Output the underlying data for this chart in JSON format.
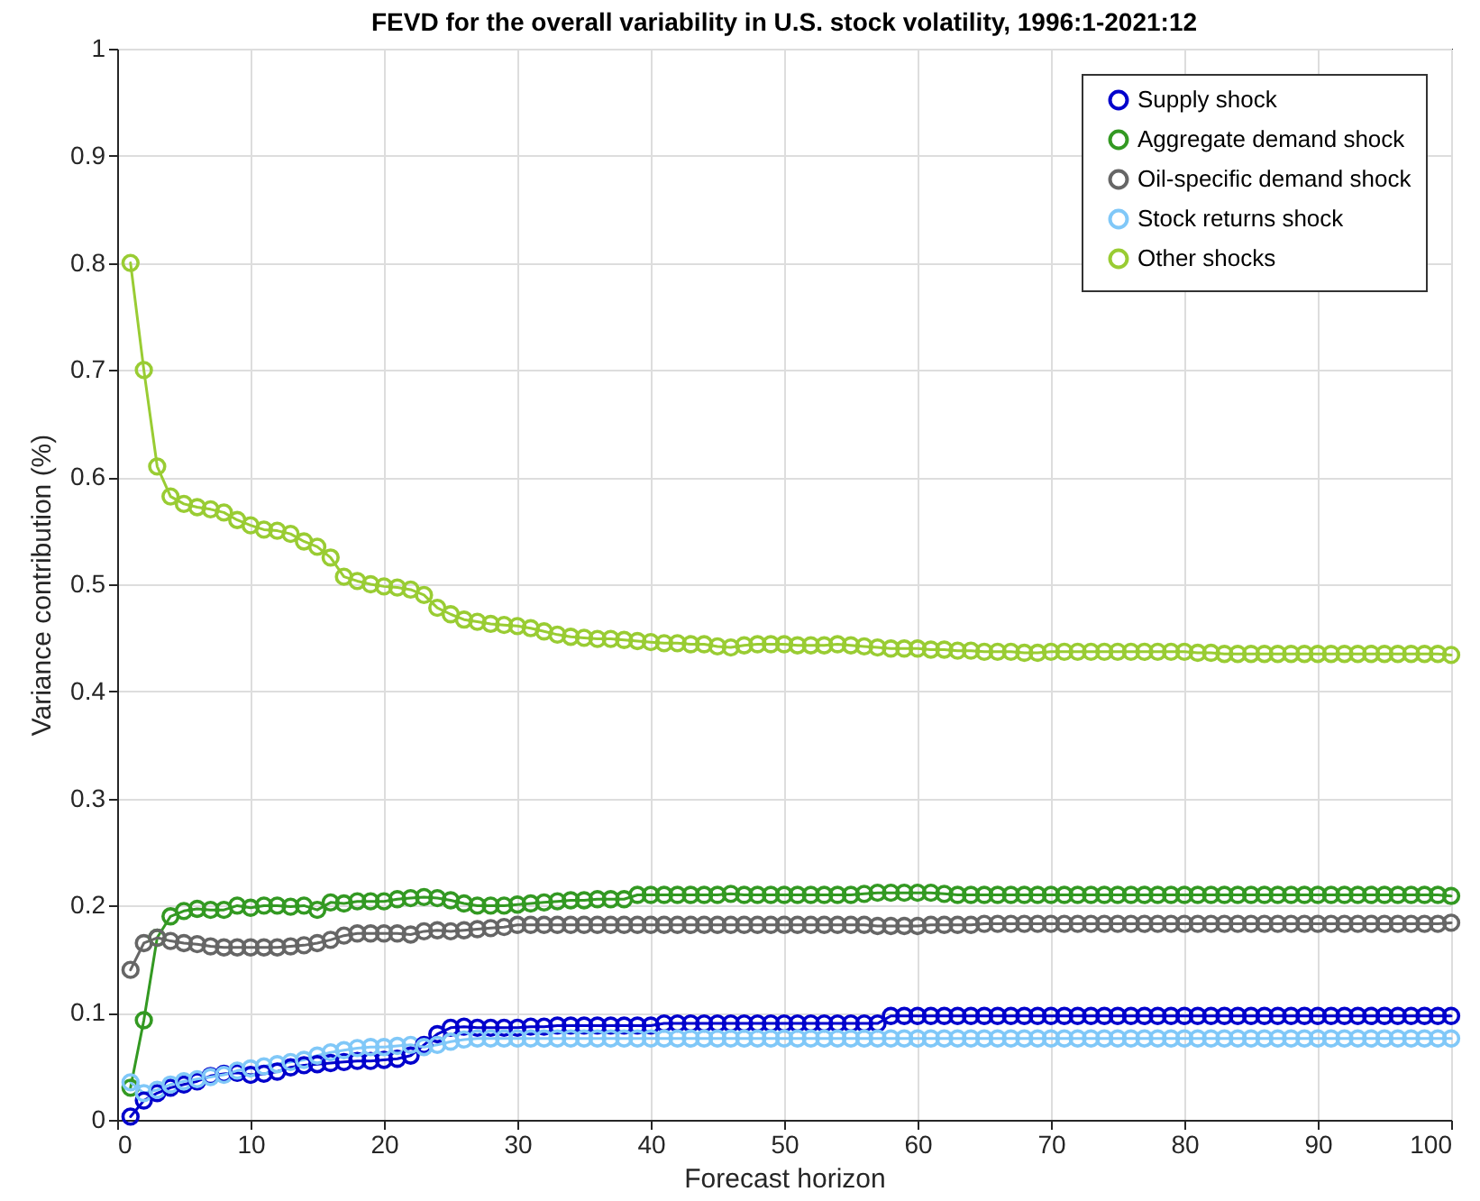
{
  "chart_data": {
    "type": "line",
    "title": "FEVD for the overall variability in U.S. stock volatility, 1996:1-2021:12",
    "xlabel": "Forecast horizon",
    "ylabel": "Variance contribution (%)",
    "x": [
      1,
      2,
      3,
      4,
      5,
      6,
      7,
      8,
      9,
      10,
      11,
      12,
      13,
      14,
      15,
      16,
      17,
      18,
      19,
      20,
      21,
      22,
      23,
      24,
      25,
      26,
      27,
      28,
      29,
      30,
      31,
      32,
      33,
      34,
      35,
      36,
      37,
      38,
      39,
      40,
      41,
      42,
      43,
      44,
      45,
      46,
      47,
      48,
      49,
      50,
      51,
      52,
      53,
      54,
      55,
      56,
      57,
      58,
      59,
      60,
      61,
      62,
      63,
      64,
      65,
      66,
      67,
      68,
      69,
      70,
      71,
      72,
      73,
      74,
      75,
      76,
      77,
      78,
      79,
      80,
      81,
      82,
      83,
      84,
      85,
      86,
      87,
      88,
      89,
      90,
      91,
      92,
      93,
      94,
      95,
      96,
      97,
      98,
      99,
      100
    ],
    "series": [
      {
        "name": "Supply shock",
        "color": "#0000cc",
        "values": [
          0.003,
          0.018,
          0.025,
          0.03,
          0.033,
          0.036,
          0.041,
          0.043,
          0.044,
          0.042,
          0.043,
          0.045,
          0.049,
          0.051,
          0.052,
          0.053,
          0.054,
          0.055,
          0.055,
          0.056,
          0.057,
          0.06,
          0.07,
          0.08,
          0.086,
          0.087,
          0.086,
          0.086,
          0.086,
          0.086,
          0.087,
          0.087,
          0.088,
          0.088,
          0.088,
          0.088,
          0.088,
          0.088,
          0.088,
          0.088,
          0.09,
          0.09,
          0.09,
          0.09,
          0.09,
          0.09,
          0.09,
          0.09,
          0.09,
          0.09,
          0.09,
          0.09,
          0.09,
          0.09,
          0.09,
          0.09,
          0.09,
          0.097,
          0.097,
          0.097,
          0.097,
          0.097,
          0.097,
          0.097,
          0.097,
          0.097,
          0.097,
          0.097,
          0.097,
          0.097,
          0.097,
          0.097,
          0.097,
          0.097,
          0.097,
          0.097,
          0.097,
          0.097,
          0.097,
          0.097,
          0.097,
          0.097,
          0.097,
          0.097,
          0.097,
          0.097,
          0.097,
          0.097,
          0.097,
          0.097,
          0.097,
          0.097,
          0.097,
          0.097,
          0.097,
          0.097,
          0.097,
          0.097,
          0.097,
          0.097
        ]
      },
      {
        "name": "Aggregate demand shock",
        "color": "#339922",
        "values": [
          0.03,
          0.093,
          0.17,
          0.19,
          0.195,
          0.197,
          0.196,
          0.196,
          0.2,
          0.198,
          0.2,
          0.2,
          0.199,
          0.2,
          0.196,
          0.203,
          0.202,
          0.204,
          0.204,
          0.204,
          0.206,
          0.207,
          0.208,
          0.207,
          0.205,
          0.202,
          0.2,
          0.2,
          0.2,
          0.201,
          0.202,
          0.203,
          0.204,
          0.205,
          0.205,
          0.206,
          0.206,
          0.206,
          0.21,
          0.21,
          0.21,
          0.21,
          0.21,
          0.21,
          0.21,
          0.211,
          0.21,
          0.21,
          0.21,
          0.21,
          0.21,
          0.21,
          0.21,
          0.21,
          0.21,
          0.211,
          0.212,
          0.212,
          0.212,
          0.212,
          0.212,
          0.211,
          0.21,
          0.21,
          0.21,
          0.21,
          0.21,
          0.21,
          0.21,
          0.21,
          0.21,
          0.21,
          0.21,
          0.21,
          0.21,
          0.21,
          0.21,
          0.21,
          0.21,
          0.21,
          0.21,
          0.21,
          0.21,
          0.21,
          0.21,
          0.21,
          0.21,
          0.21,
          0.21,
          0.21,
          0.21,
          0.21,
          0.21,
          0.21,
          0.21,
          0.21,
          0.21,
          0.21,
          0.21,
          0.209
        ]
      },
      {
        "name": "Oil-specific demand shock",
        "color": "#666666",
        "values": [
          0.14,
          0.165,
          0.17,
          0.167,
          0.165,
          0.164,
          0.162,
          0.161,
          0.161,
          0.161,
          0.161,
          0.161,
          0.162,
          0.163,
          0.165,
          0.168,
          0.172,
          0.174,
          0.174,
          0.174,
          0.174,
          0.173,
          0.176,
          0.177,
          0.176,
          0.177,
          0.178,
          0.179,
          0.18,
          0.182,
          0.182,
          0.182,
          0.182,
          0.182,
          0.182,
          0.182,
          0.182,
          0.182,
          0.182,
          0.182,
          0.182,
          0.182,
          0.182,
          0.182,
          0.182,
          0.182,
          0.182,
          0.182,
          0.182,
          0.182,
          0.182,
          0.182,
          0.182,
          0.182,
          0.182,
          0.182,
          0.181,
          0.181,
          0.181,
          0.181,
          0.182,
          0.182,
          0.182,
          0.182,
          0.183,
          0.183,
          0.183,
          0.183,
          0.183,
          0.183,
          0.183,
          0.183,
          0.183,
          0.183,
          0.183,
          0.183,
          0.183,
          0.183,
          0.183,
          0.183,
          0.183,
          0.183,
          0.183,
          0.183,
          0.183,
          0.183,
          0.183,
          0.183,
          0.183,
          0.183,
          0.183,
          0.183,
          0.183,
          0.183,
          0.183,
          0.183,
          0.183,
          0.183,
          0.183,
          0.184
        ]
      },
      {
        "name": "Stock returns shock",
        "color": "#80c8f8",
        "values": [
          0.035,
          0.025,
          0.028,
          0.033,
          0.036,
          0.038,
          0.04,
          0.042,
          0.046,
          0.048,
          0.05,
          0.052,
          0.054,
          0.056,
          0.06,
          0.063,
          0.065,
          0.067,
          0.068,
          0.068,
          0.069,
          0.07,
          0.068,
          0.07,
          0.073,
          0.075,
          0.076,
          0.076,
          0.076,
          0.076,
          0.076,
          0.076,
          0.076,
          0.076,
          0.076,
          0.076,
          0.076,
          0.076,
          0.076,
          0.076,
          0.076,
          0.076,
          0.076,
          0.076,
          0.076,
          0.076,
          0.076,
          0.076,
          0.076,
          0.076,
          0.076,
          0.076,
          0.076,
          0.076,
          0.076,
          0.076,
          0.076,
          0.076,
          0.076,
          0.076,
          0.076,
          0.076,
          0.076,
          0.076,
          0.076,
          0.076,
          0.076,
          0.076,
          0.076,
          0.076,
          0.076,
          0.076,
          0.076,
          0.076,
          0.076,
          0.076,
          0.076,
          0.076,
          0.076,
          0.076,
          0.076,
          0.076,
          0.076,
          0.076,
          0.076,
          0.076,
          0.076,
          0.076,
          0.076,
          0.076,
          0.076,
          0.076,
          0.076,
          0.076,
          0.076,
          0.076,
          0.076,
          0.076,
          0.076,
          0.076
        ]
      },
      {
        "name": "Other shocks",
        "color": "#99cc33",
        "values": [
          0.8,
          0.7,
          0.61,
          0.582,
          0.575,
          0.572,
          0.57,
          0.567,
          0.56,
          0.555,
          0.551,
          0.55,
          0.547,
          0.54,
          0.535,
          0.525,
          0.507,
          0.503,
          0.5,
          0.498,
          0.497,
          0.495,
          0.49,
          0.478,
          0.472,
          0.467,
          0.465,
          0.463,
          0.462,
          0.461,
          0.459,
          0.456,
          0.453,
          0.451,
          0.45,
          0.449,
          0.449,
          0.448,
          0.447,
          0.446,
          0.445,
          0.445,
          0.444,
          0.444,
          0.442,
          0.441,
          0.443,
          0.444,
          0.444,
          0.444,
          0.443,
          0.443,
          0.443,
          0.444,
          0.443,
          0.442,
          0.441,
          0.44,
          0.44,
          0.44,
          0.439,
          0.439,
          0.438,
          0.438,
          0.437,
          0.437,
          0.437,
          0.436,
          0.436,
          0.437,
          0.437,
          0.437,
          0.437,
          0.437,
          0.437,
          0.437,
          0.437,
          0.437,
          0.437,
          0.437,
          0.436,
          0.436,
          0.435,
          0.435,
          0.435,
          0.435,
          0.435,
          0.435,
          0.435,
          0.435,
          0.435,
          0.435,
          0.435,
          0.435,
          0.435,
          0.435,
          0.435,
          0.435,
          0.435,
          0.434
        ]
      }
    ],
    "xlim": [
      0,
      100
    ],
    "xticks": [
      0,
      10,
      20,
      30,
      40,
      50,
      60,
      70,
      80,
      90,
      100
    ],
    "ylim": [
      0,
      1
    ],
    "yticks": [
      0,
      0.1,
      0.2,
      0.3,
      0.4,
      0.5,
      0.6,
      0.7,
      0.8,
      0.9,
      1
    ],
    "grid": true,
    "legend": "top right",
    "marker": "circle",
    "line_style": "solid"
  }
}
